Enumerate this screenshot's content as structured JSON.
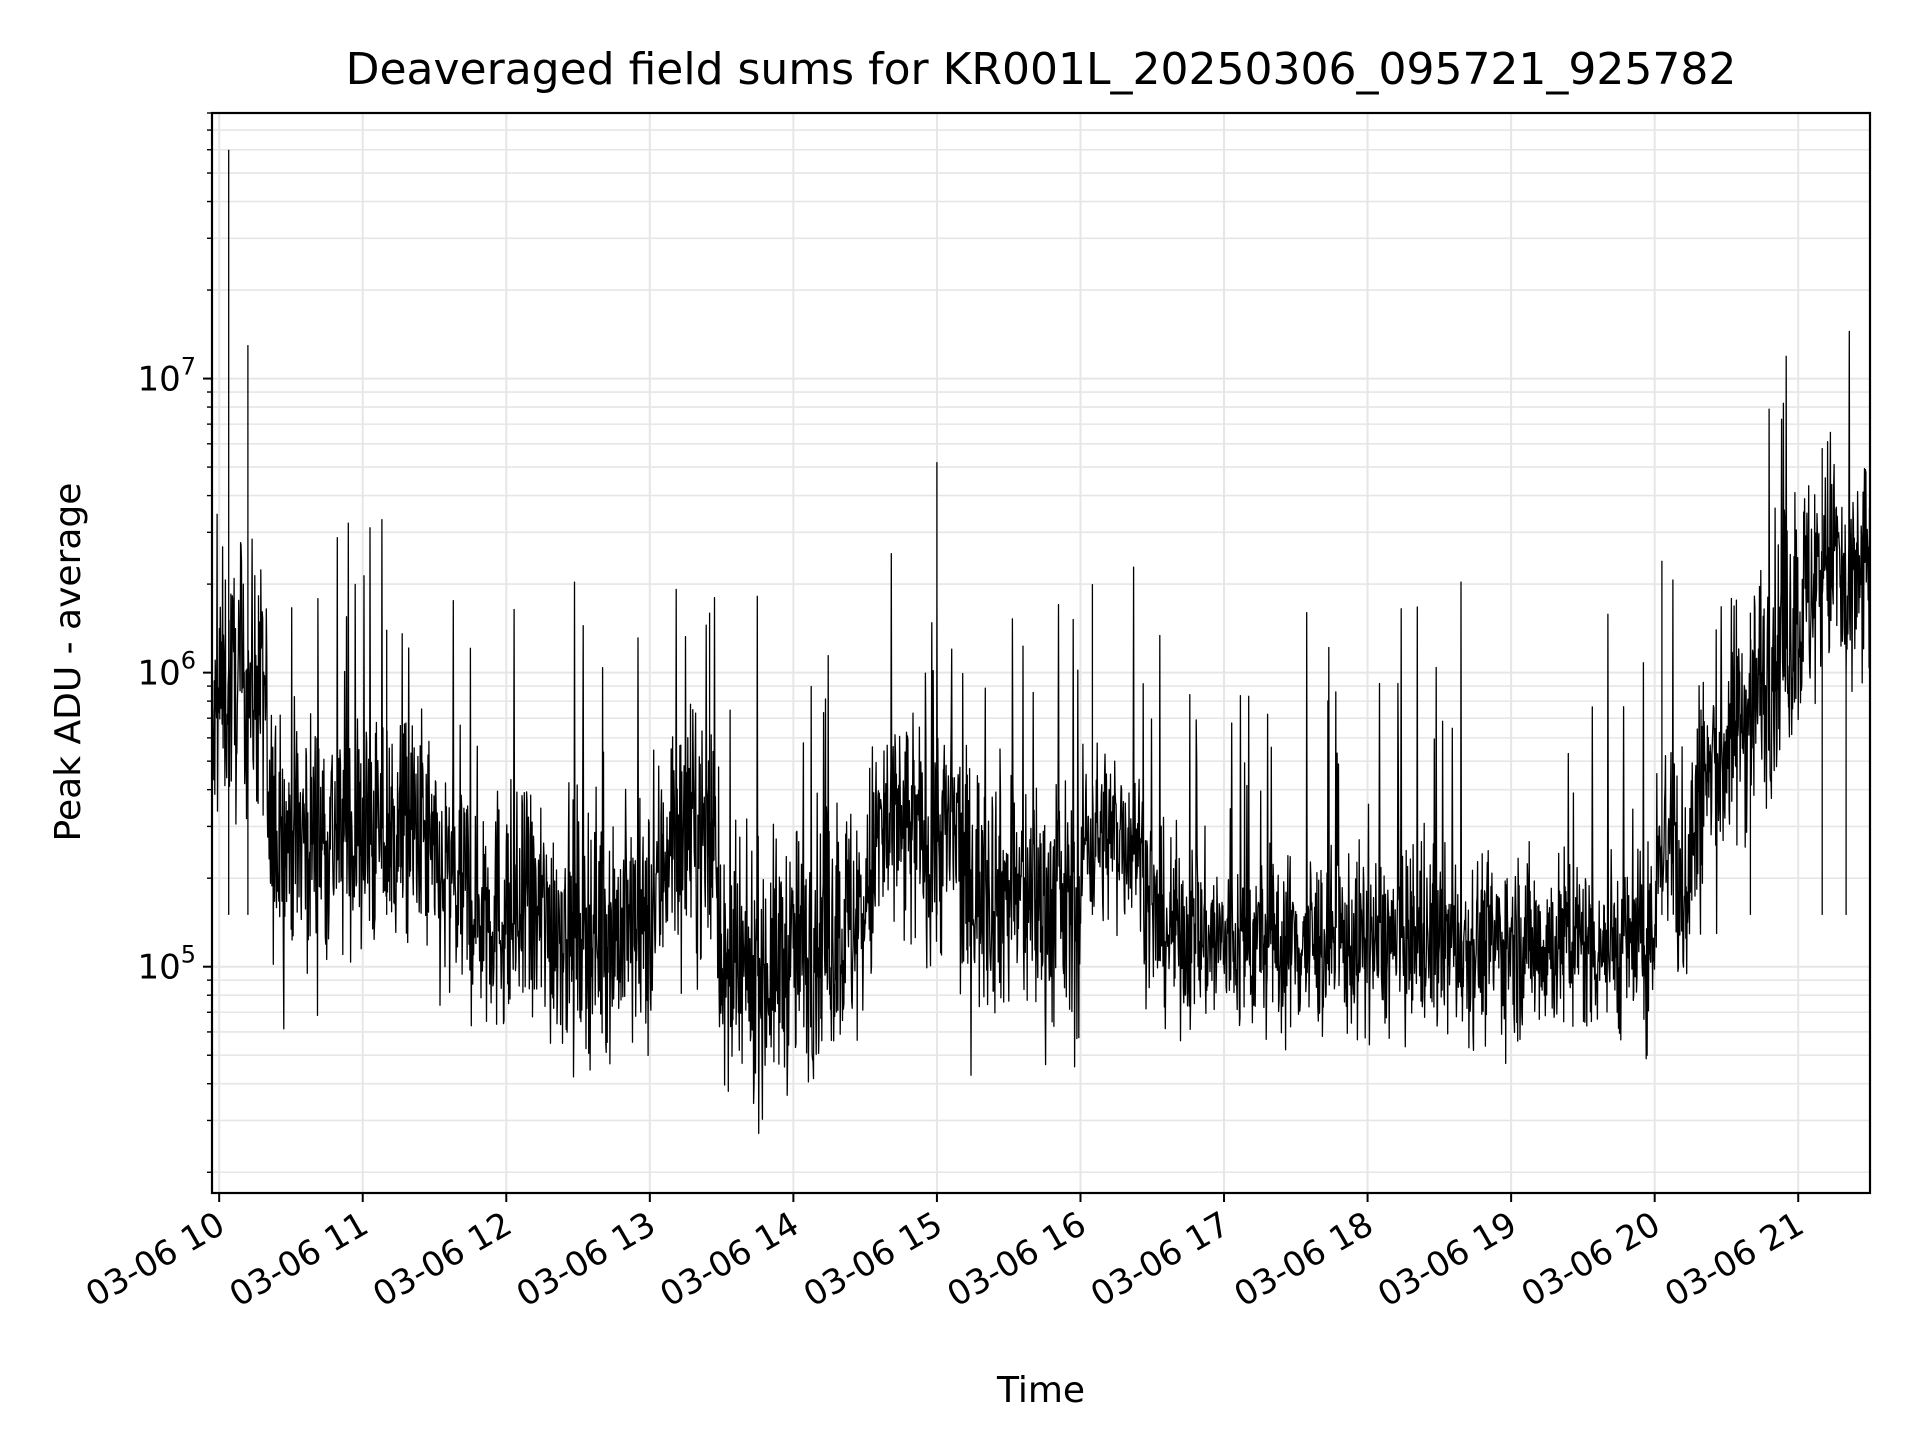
{
  "chart_data": {
    "type": "line",
    "title": "Deaveraged field sums for KR001L_20250306_095721_925782",
    "xlabel": "Time",
    "ylabel": "Peak ADU - average",
    "yscale": "log",
    "xlim": [
      "2025-03-06 09:57",
      "2025-03-06 21:30"
    ],
    "ylim": [
      17000,
      80000000
    ],
    "grid": "on (major and minor)",
    "line_color": "#000000",
    "x_ticks": [
      "03-06 10",
      "03-06 11",
      "03-06 12",
      "03-06 13",
      "03-06 14",
      "03-06 15",
      "03-06 16",
      "03-06 17",
      "03-06 18",
      "03-06 19",
      "03-06 20",
      "03-06 21"
    ],
    "y_ticks": [
      {
        "value": 100000,
        "base": "10",
        "exp": "5"
      },
      {
        "value": 1000000,
        "base": "10",
        "exp": "6"
      },
      {
        "value": 10000000,
        "base": "10",
        "exp": "7"
      }
    ],
    "series": [
      {
        "values": [
          {
            "t": "2025-03-06 09:57",
            "y": 500000
          },
          {
            "t": "2025-03-06 10:00",
            "y": 800000
          },
          {
            "t": "2025-03-06 10:04",
            "y": 60000000
          },
          {
            "t": "2025-03-06 10:12",
            "y": 13000000
          },
          {
            "t": "2025-03-06 10:18",
            "y": 900000
          },
          {
            "t": "2025-03-06 10:30",
            "y": 350000
          },
          {
            "t": "2025-03-06 11:00",
            "y": 300000
          },
          {
            "t": "2025-03-06 11:10",
            "y": 1400000
          },
          {
            "t": "2025-03-06 11:30",
            "y": 200000
          },
          {
            "t": "2025-03-06 12:00",
            "y": 150000
          },
          {
            "t": "2025-03-06 12:30",
            "y": 140000
          },
          {
            "t": "2025-03-06 13:00",
            "y": 130000
          },
          {
            "t": "2025-03-06 13:25",
            "y": 1600000
          },
          {
            "t": "2025-03-06 13:30",
            "y": 80000
          },
          {
            "t": "2025-03-06 14:00",
            "y": 110000
          },
          {
            "t": "2025-03-06 14:30",
            "y": 150000
          },
          {
            "t": "2025-03-06 15:00",
            "y": 5200000
          },
          {
            "t": "2025-03-06 15:10",
            "y": 200000
          },
          {
            "t": "2025-03-06 15:30",
            "y": 180000
          },
          {
            "t": "2025-03-06 16:00",
            "y": 150000
          },
          {
            "t": "2025-03-06 16:05",
            "y": 2000000
          },
          {
            "t": "2025-03-06 16:30",
            "y": 140000
          },
          {
            "t": "2025-03-06 17:00",
            "y": 120000
          },
          {
            "t": "2025-03-06 18:00",
            "y": 120000
          },
          {
            "t": "2025-03-06 19:00",
            "y": 120000
          },
          {
            "t": "2025-03-06 20:00",
            "y": 120000
          },
          {
            "t": "2025-03-06 20:03",
            "y": 2400000
          },
          {
            "t": "2025-03-06 20:10",
            "y": 150000
          },
          {
            "t": "2025-03-06 20:20",
            "y": 400000
          },
          {
            "t": "2025-03-06 20:40",
            "y": 1600000
          },
          {
            "t": "2025-03-06 21:10",
            "y": 5800000
          },
          {
            "t": "2025-03-06 21:20",
            "y": 1500000
          },
          {
            "t": "2025-03-06 21:30",
            "y": 2500000
          }
        ]
      }
    ]
  }
}
